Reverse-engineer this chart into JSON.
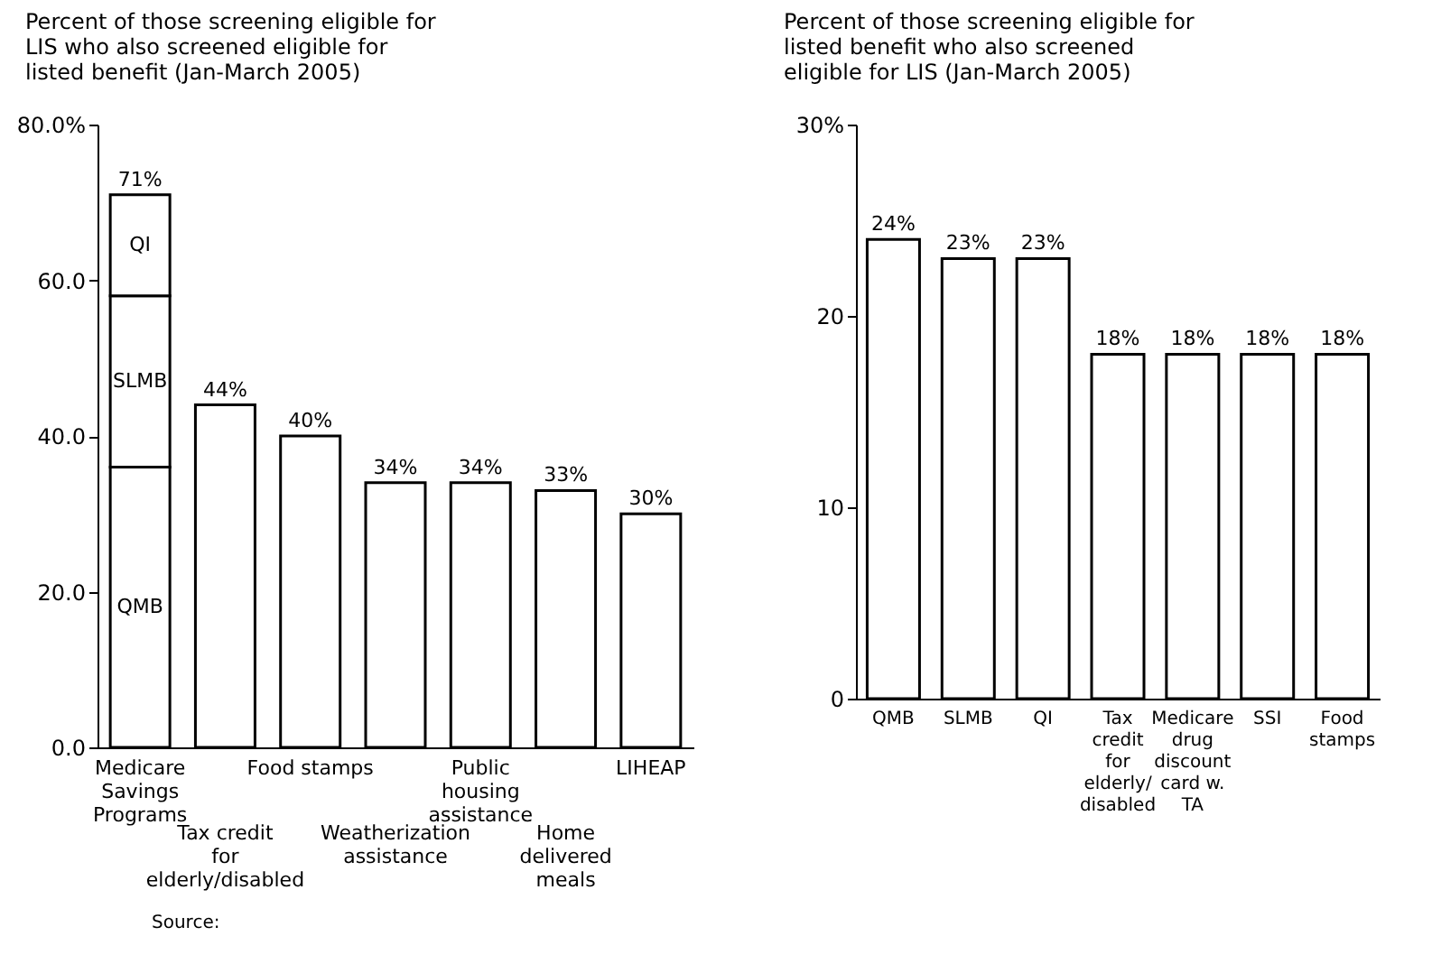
{
  "chart_data": [
    {
      "type": "bar",
      "stacked": true,
      "title": "Percent of those screening eligible for LIS who also screened eligible for listed benefit (Jan-March 2005)",
      "categories": [
        "Medicare Savings Programs",
        "Tax credit for elderly/disabled",
        "Food stamps",
        "Weatherization assistance",
        "Public housing assistance",
        "Home delivered meals",
        "LIHEAP"
      ],
      "series": [
        {
          "name": "QMB",
          "color": "#ffffff",
          "values": [
            36,
            null,
            null,
            null,
            null,
            null,
            null
          ]
        },
        {
          "name": "SLMB",
          "color": "#ffffff",
          "values": [
            22,
            null,
            null,
            null,
            null,
            null,
            null
          ]
        },
        {
          "name": "QI",
          "color": "#ffffff",
          "values": [
            13,
            null,
            null,
            null,
            null,
            null,
            null
          ]
        },
        {
          "color": "#ffffff",
          "values": [
            null,
            44,
            40,
            34,
            34,
            33,
            30
          ]
        }
      ],
      "totals": [
        "71%",
        "44%",
        "40%",
        "34%",
        "34%",
        "33%",
        "30%"
      ],
      "ylim": [
        0,
        80
      ],
      "yticks": [
        {
          "value": 0,
          "label": "0.0"
        },
        {
          "value": 20,
          "label": "20.0"
        },
        {
          "value": 40,
          "label": "40.0"
        },
        {
          "value": 60,
          "label": "60.0"
        },
        {
          "value": 80,
          "label": "80.0%"
        }
      ],
      "annotations": [
        "Source:"
      ]
    },
    {
      "type": "bar",
      "title": "Percent of those screening eligible for listed benefit who also screened eligible for LIS (Jan-March 2005)",
      "categories": [
        "QMB",
        "SLMB",
        "QI",
        "Tax credit for elderly/ disabled",
        "Medicare drug discount card w. TA",
        "SSI",
        "Food stamps"
      ],
      "values": [
        24,
        23,
        23,
        18,
        18,
        18,
        18
      ],
      "color": "#ffffff",
      "value_labels": [
        "24%",
        "23%",
        "23%",
        "18%",
        "18%",
        "18%",
        "18%"
      ],
      "ylim": [
        0,
        30
      ],
      "yticks": [
        0,
        10,
        20,
        {
          "value": 30,
          "label": "30%"
        }
      ]
    }
  ]
}
